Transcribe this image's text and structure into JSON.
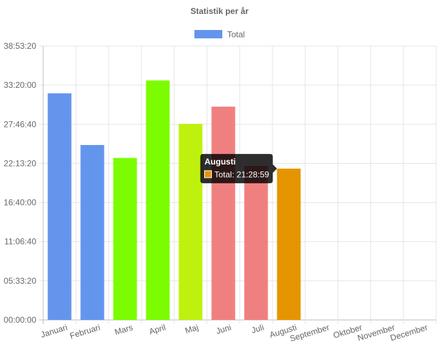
{
  "chart_data": {
    "type": "bar",
    "title": "Statistik per år",
    "legend": {
      "placement": "top-center",
      "entries": [
        {
          "label": "Total",
          "color": "#6495ED"
        }
      ]
    },
    "categories": [
      "Januari",
      "Februari",
      "Mars",
      "April",
      "Maj",
      "Juni",
      "Juli",
      "Augusti",
      "September",
      "Oktober",
      "November",
      "December"
    ],
    "series": [
      {
        "name": "Total",
        "values_seconds": [
          115800,
          89400,
          82800,
          122400,
          100200,
          109000,
          78700,
          77339,
          0,
          0,
          0,
          0
        ],
        "colors": [
          "#6495ED",
          "#6495ED",
          "#7CFC00",
          "#7CFC00",
          "#BFF10F",
          "#F08080",
          "#F08080",
          "#E69500",
          null,
          null,
          null,
          null
        ]
      }
    ],
    "y_axis": {
      "min_seconds": 0,
      "max_seconds": 140000,
      "step_seconds": 20000,
      "tick_labels": [
        "00:00:00",
        "05:33:20",
        "11:06:40",
        "16:40:00",
        "22:13:20",
        "27:46:40",
        "33:20:00",
        "38:53:20"
      ]
    },
    "grid": true,
    "tooltip": {
      "category_index": 7,
      "title": "Augusti",
      "label": "Total: 21:28:59",
      "swatch_color": "#E69500"
    }
  }
}
